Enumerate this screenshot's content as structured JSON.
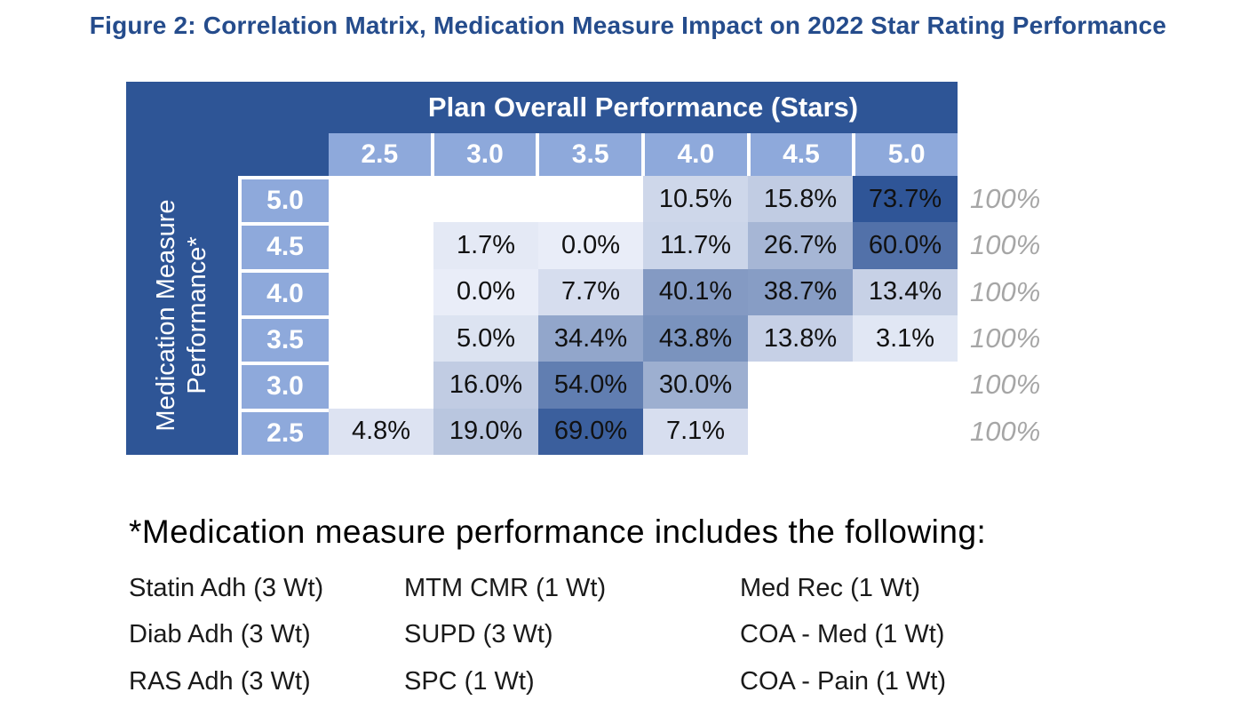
{
  "figure_title": "Figure 2: Correlation Matrix, Medication Measure Impact on 2022 Star Rating Performance",
  "chart_data": {
    "type": "heatmap",
    "title": "Plan Overall Performance (Stars)",
    "row_axis_label": "Medication Measure Performance*",
    "columns": [
      "2.5",
      "3.0",
      "3.5",
      "4.0",
      "4.5",
      "5.0"
    ],
    "rows": [
      "5.0",
      "4.5",
      "4.0",
      "3.5",
      "3.0",
      "2.5"
    ],
    "values_pct": [
      [
        null,
        null,
        null,
        10.5,
        15.8,
        73.7
      ],
      [
        null,
        1.7,
        0.0,
        11.7,
        26.7,
        60.0
      ],
      [
        null,
        0.0,
        7.7,
        40.1,
        38.7,
        13.4
      ],
      [
        null,
        5.0,
        34.4,
        43.8,
        13.8,
        3.1
      ],
      [
        null,
        16.0,
        54.0,
        30.0,
        null,
        null
      ],
      [
        4.8,
        19.0,
        69.0,
        7.1,
        null,
        null
      ]
    ],
    "cell_labels": [
      [
        "",
        "",
        "",
        "10.5%",
        "15.8%",
        "73.7%"
      ],
      [
        "",
        "1.7%",
        "0.0%",
        "11.7%",
        "26.7%",
        "60.0%"
      ],
      [
        "",
        "0.0%",
        "7.7%",
        "40.1%",
        "38.7%",
        "13.4%"
      ],
      [
        "",
        "5.0%",
        "34.4%",
        "43.8%",
        "13.8%",
        "3.1%"
      ],
      [
        "",
        "16.0%",
        "54.0%",
        "30.0%",
        "",
        ""
      ],
      [
        "4.8%",
        "19.0%",
        "69.0%",
        "7.1%",
        "",
        ""
      ]
    ],
    "cell_colors": [
      [
        null,
        null,
        null,
        "#CED7EA",
        "#C1CCE3",
        "#2F5597"
      ],
      [
        null,
        "#E4E9F5",
        "#E9EDF8",
        "#CBD5E9",
        "#A6B6D5",
        "#5271A9"
      ],
      [
        null,
        "#E9EDF8",
        "#D6DDEE",
        "#849AC3",
        "#879DC5",
        "#C7D1E6"
      ],
      [
        null,
        "#DCE3F1",
        "#92A6CB",
        "#7A93BE",
        "#C6D0E6",
        "#E1E7F4"
      ],
      [
        null,
        "#C1CCE3",
        "#617EB1",
        "#9DAFD0",
        null,
        null
      ],
      [
        "#DDE3F2",
        "#B9C6DF",
        "#3B5F9D",
        "#D7DEEF",
        null,
        null
      ]
    ],
    "row_totals": [
      "100%",
      "100%",
      "100%",
      "100%",
      "100%",
      "100%"
    ],
    "color_scale": {
      "min_value": 0,
      "max_value": 73.7,
      "min_color": "#E9EDF8",
      "max_color": "#2F5597"
    },
    "colors": {
      "header_bg": "#2E5596",
      "subheader_bg": "#8EA9DB",
      "header_text": "#FFFFFF",
      "cell_text": "#111111",
      "total_text": "#A6A6A6",
      "figure_title_text": "#254C8C"
    },
    "legend_position": "none",
    "grid": "off"
  },
  "footnote": {
    "heading": "*Medication measure performance includes the following:",
    "columns": [
      [
        "Statin Adh (3 Wt)",
        "Diab Adh (3 Wt)",
        "RAS Adh (3 Wt)"
      ],
      [
        "MTM CMR (1 Wt)",
        "SUPD (3 Wt)",
        "SPC (1 Wt)"
      ],
      [
        "Med Rec  (1 Wt)",
        "COA - Med (1 Wt)",
        "COA - Pain (1 Wt)"
      ]
    ]
  }
}
